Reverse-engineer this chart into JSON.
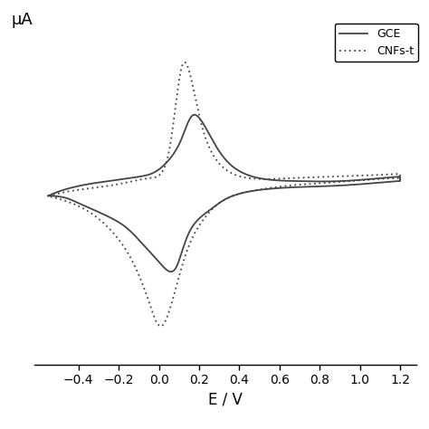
{
  "title": "",
  "xlabel": "E / V",
  "ylabel": "μA",
  "xlim": [
    -0.62,
    1.28
  ],
  "xticks": [
    -0.4,
    -0.2,
    0.0,
    0.2,
    0.4,
    0.6,
    0.8,
    1.0,
    1.2
  ],
  "legend_labels": [
    "GCE",
    "CNFs-t"
  ],
  "line_color": "#444444",
  "dot_color": "#444444",
  "background_color": "#ffffff",
  "figsize": [
    4.74,
    4.74
  ],
  "dpi": 100
}
